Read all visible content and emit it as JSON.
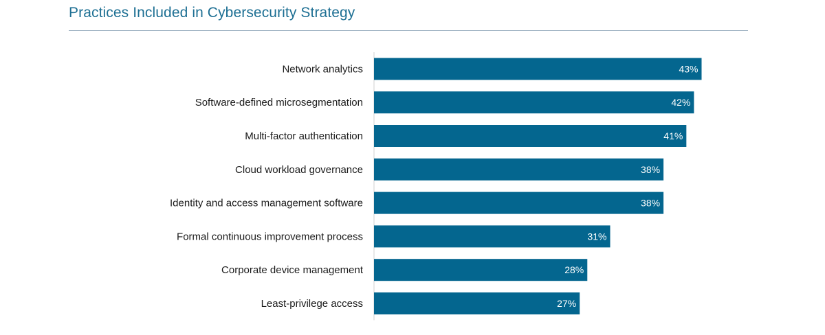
{
  "title": "Practices Included in Cybersecurity Strategy",
  "colors": {
    "bar": "#04668f",
    "title": "#1d6f93",
    "rule": "#9fb3c3",
    "axis": "#d0d0d0"
  },
  "chart_data": {
    "type": "bar",
    "orientation": "horizontal",
    "title": "Practices Included in Cybersecurity Strategy",
    "xlabel": "",
    "ylabel": "",
    "xlim": [
      0,
      45
    ],
    "grid": false,
    "legend": "none",
    "categories": [
      "Network analytics",
      "Software-defined microsegmentation",
      "Multi-factor authentication",
      "Cloud workload governance",
      "Identity and access management software",
      "Formal continuous improvement process",
      "Corporate device management",
      "Least-privilege access"
    ],
    "values": [
      43,
      42,
      41,
      38,
      38,
      31,
      28,
      27
    ],
    "value_labels": [
      "43%",
      "42%",
      "41%",
      "38%",
      "38%",
      "31%",
      "28%",
      "27%"
    ]
  }
}
